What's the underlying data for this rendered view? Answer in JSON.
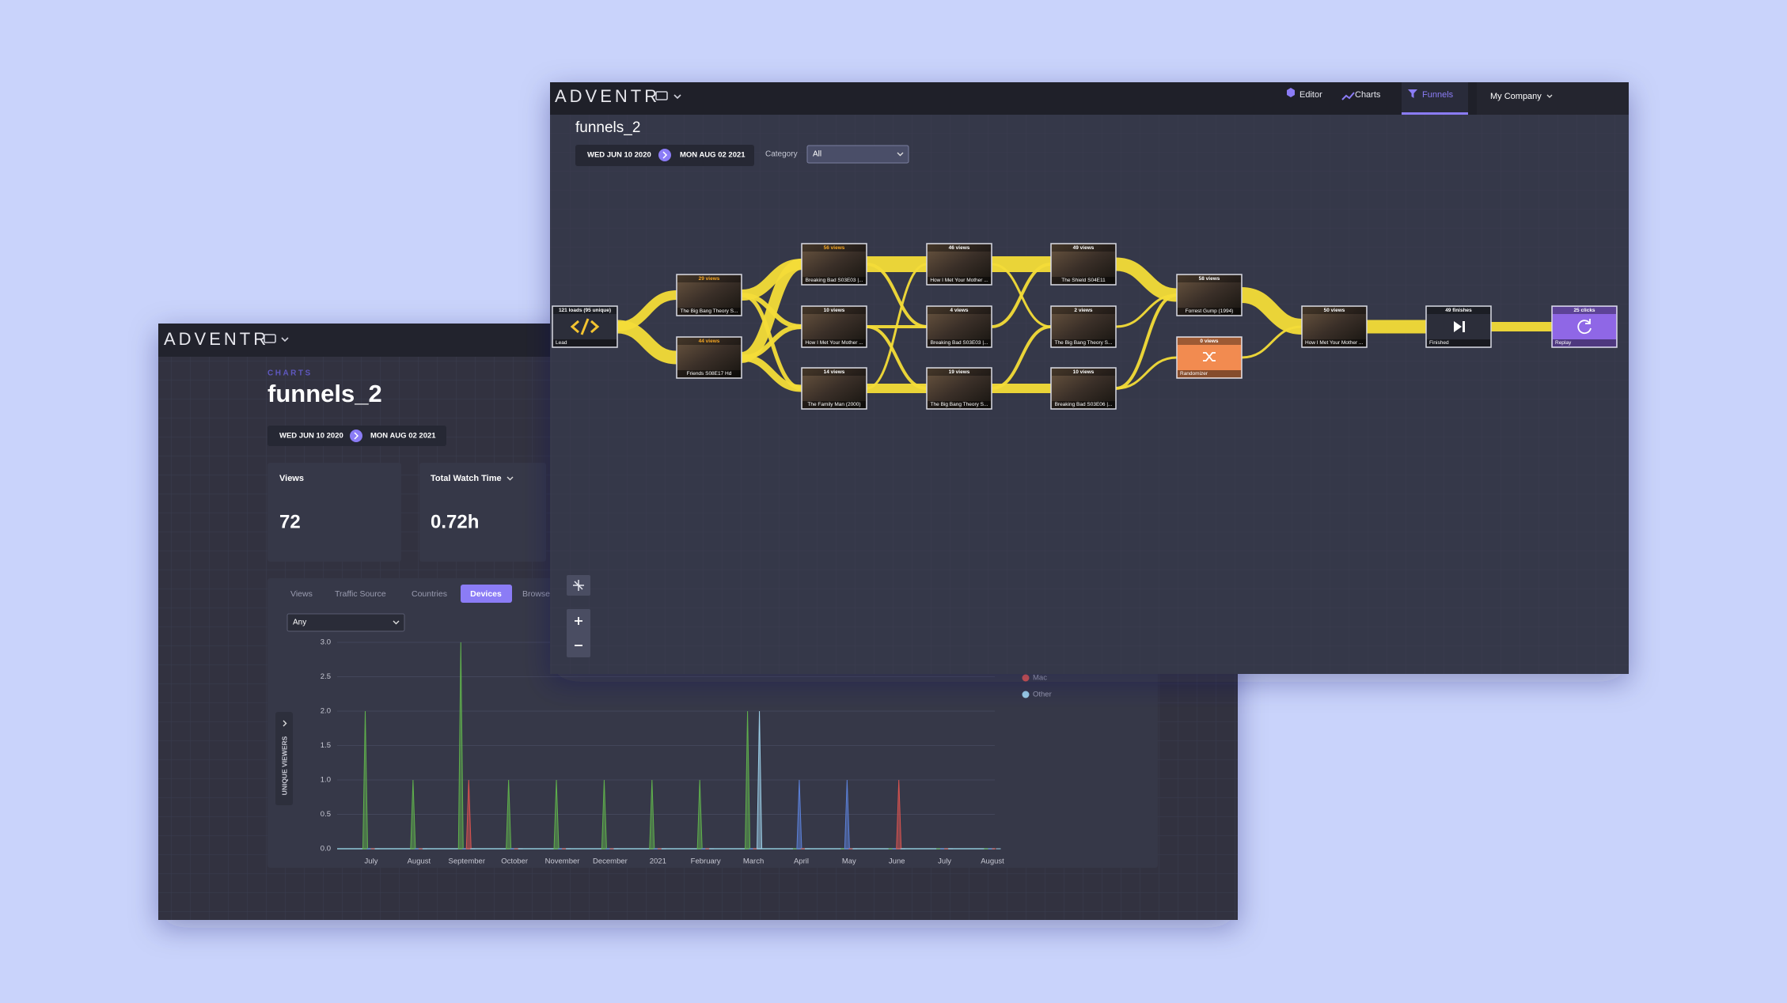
{
  "back_window": {
    "logo": "ADVENTR",
    "section": "CHARTS",
    "title": "funnels_2",
    "date_start": "WED JUN 10 2020",
    "date_end": "MON AUG 02 2021",
    "cards": [
      {
        "label": "Views",
        "value": 72
      },
      {
        "label": "Total Watch Time",
        "value": "0.72h"
      }
    ],
    "tabs": [
      "Views",
      "Traffic Source",
      "Countries",
      "Devices",
      "Browsers"
    ],
    "active_tab": 3,
    "filter": "Any",
    "chart_data": {
      "type": "spike",
      "y_label": "UNIQUE VIEWERS",
      "categories": [
        "July",
        "August",
        "September",
        "October",
        "November",
        "December",
        "2021",
        "February",
        "March",
        "April",
        "May",
        "June",
        "July",
        "August"
      ],
      "ylim": [
        0,
        3
      ],
      "yticks": [
        {
          "value": 0,
          "label": "0.0"
        },
        {
          "value": 0.5,
          "label": "0.5"
        },
        {
          "value": 1,
          "label": "1.0"
        },
        {
          "value": 1.5,
          "label": "1.5"
        },
        {
          "value": 2,
          "label": "2.0"
        },
        {
          "value": 2.5,
          "label": "2.5"
        },
        {
          "value": 3,
          "label": "3.0"
        }
      ],
      "grid": true,
      "series": [
        {
          "color": "#5fb04c",
          "values": [
            2,
            1,
            3,
            1,
            1,
            1,
            1,
            1,
            2,
            0,
            0,
            0,
            0,
            0
          ]
        },
        {
          "color": "#5b80d8",
          "values": [
            0,
            0,
            0,
            0,
            0,
            0,
            0,
            0,
            0,
            1,
            1,
            0,
            0,
            0
          ]
        },
        {
          "name": "Mac",
          "color": "#d9534f",
          "values": [
            0,
            0,
            1,
            0,
            0,
            0,
            0,
            0,
            0,
            0,
            0,
            1,
            0,
            0
          ]
        },
        {
          "name": "Other",
          "color": "#9ccfe8",
          "values": [
            0,
            0,
            0,
            0,
            0,
            0,
            0,
            0,
            2,
            0,
            0,
            0,
            0,
            0
          ]
        }
      ]
    }
  },
  "front_window": {
    "logo": "ADVENTR",
    "nav": [
      "Editor",
      "Charts",
      "Funnels"
    ],
    "active_nav": 2,
    "account": "My Company",
    "title": "funnels_2",
    "date_start": "WED JUN 10 2020",
    "date_end": "MON AUG 02 2021",
    "category_label": "Category",
    "category_value": "All",
    "nodes": [
      {
        "header": "121 loads (95 unique)",
        "title": "Lead"
      },
      {
        "header": "29 views",
        "title": "The Big Bang Theory S..."
      },
      {
        "header": "44 views",
        "title": "Friends S08E17 Hd"
      },
      {
        "header": "56 views",
        "title": "Breaking Bad S03E03 |..."
      },
      {
        "header": "10 views",
        "title": "How I Met Your Mother ..."
      },
      {
        "header": "14 views",
        "title": "The Family Man (2000)"
      },
      {
        "header": "46 views",
        "title": "How I Met Your Mother ..."
      },
      {
        "header": "4 views",
        "title": "Breaking Bad S03E03 |..."
      },
      {
        "header": "19 views",
        "title": "The Big Bang Theory S..."
      },
      {
        "header": "49 views",
        "title": "The Shield S04E11"
      },
      {
        "header": "2 views",
        "title": "The Big Bang Theory S..."
      },
      {
        "header": "10 views",
        "title": "Breaking Bad S03E06 |..."
      },
      {
        "header": "58 views",
        "title": "Forrest Gump (1994)"
      },
      {
        "header": "0 views",
        "title": "Randomizer"
      },
      {
        "header": "50 views",
        "title": "How I Met Your Mother ..."
      },
      {
        "header": "49 finishes",
        "title": "Finished"
      },
      {
        "header": "25 clicks",
        "title": "Replay"
      }
    ]
  }
}
